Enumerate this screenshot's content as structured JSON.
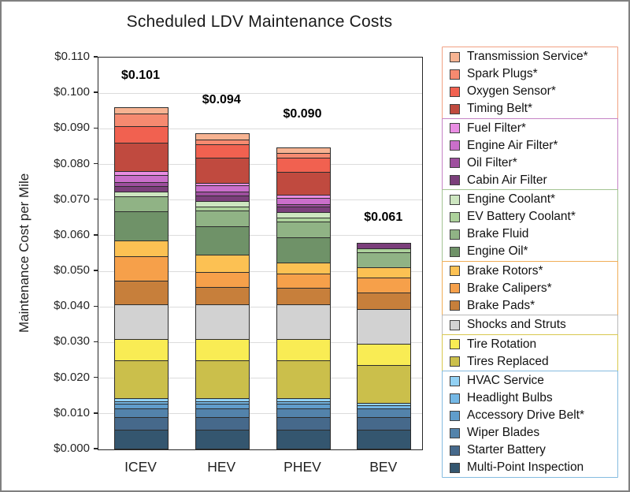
{
  "chart_data": {
    "type": "bar",
    "stacked": true,
    "title": "Scheduled LDV Maintenance Costs",
    "ylabel": "Maintenance Cost per Mile",
    "xlabel": "",
    "categories": [
      "ICEV",
      "HEV",
      "PHEV",
      "BEV"
    ],
    "totals_labels": [
      "$0.101",
      "$0.094",
      "$0.090",
      "$0.061"
    ],
    "totals_values": [
      0.101,
      0.094,
      0.09,
      0.061
    ],
    "ylim": [
      0,
      0.11
    ],
    "ytick_step": 0.01,
    "ytick_labels": [
      "$0.000",
      "$0.010",
      "$0.020",
      "$0.030",
      "$0.040",
      "$0.050",
      "$0.060",
      "$0.070",
      "$0.080",
      "$0.090",
      "$0.100",
      "$0.110"
    ],
    "grid": true,
    "legend_position": "right",
    "series_note": "series listed bottom-to-top of stack; values per category in $/mile",
    "series": [
      {
        "name": "Multi-Point Inspection",
        "color": "#34566F",
        "values": [
          0.0055,
          0.0055,
          0.0055,
          0.0055
        ]
      },
      {
        "name": "Starter Battery",
        "color": "#46698B",
        "values": [
          0.0037,
          0.0037,
          0.0037,
          0.0037
        ]
      },
      {
        "name": "Wiper Blades",
        "color": "#5383AB",
        "values": [
          0.0028,
          0.0028,
          0.0028,
          0.0028
        ]
      },
      {
        "name": "Accessory Drive Belt*",
        "color": "#609DCB",
        "values": [
          0.0015,
          0.0015,
          0.0015,
          0
        ]
      },
      {
        "name": "Headlight Bulbs",
        "color": "#74B8E6",
        "values": [
          0.001,
          0.001,
          0.001,
          0.001
        ]
      },
      {
        "name": "HVAC Service",
        "color": "#92D1F4",
        "values": [
          0.001,
          0.001,
          0.001,
          0.001
        ]
      },
      {
        "name": "Tires Replaced",
        "color": "#CBBF4B",
        "values": [
          0.0108,
          0.0108,
          0.0108,
          0.0108
        ]
      },
      {
        "name": "Tire Rotation",
        "color": "#F9EC54",
        "values": [
          0.0062,
          0.0062,
          0.0062,
          0.0062
        ]
      },
      {
        "name": "Shocks and Struts",
        "color": "#D2D2D2",
        "values": [
          0.01,
          0.01,
          0.01,
          0.01
        ]
      },
      {
        "name": "Brake Pads*",
        "color": "#C77F3B",
        "values": [
          0.0069,
          0.005,
          0.0048,
          0.0048
        ]
      },
      {
        "name": "Brake Calipers*",
        "color": "#F6A04A",
        "values": [
          0.007,
          0.0046,
          0.0044,
          0.0044
        ]
      },
      {
        "name": "Brake Rotors*",
        "color": "#FCC153",
        "values": [
          0.0048,
          0.005,
          0.0033,
          0.0031
        ]
      },
      {
        "name": "Engine Oil*",
        "color": "#6F9268",
        "values": [
          0.0083,
          0.0083,
          0.0072,
          0
        ]
      },
      {
        "name": "Brake Fluid",
        "color": "#90B385",
        "values": [
          0.0044,
          0.0046,
          0.0046,
          0.0046
        ]
      },
      {
        "name": "EV Battery Coolant*",
        "color": "#ACD19B",
        "values": [
          0,
          0.0013,
          0.0014,
          0.0013
        ]
      },
      {
        "name": "Engine Coolant*",
        "color": "#CDE6C0",
        "values": [
          0.0016,
          0.0018,
          0.0018,
          0
        ]
      },
      {
        "name": "Cabin Air Filter",
        "color": "#7B3F7B",
        "values": [
          0.0018,
          0.0018,
          0.0018,
          0.0018
        ]
      },
      {
        "name": "Oil Filter*",
        "color": "#9E4F9E",
        "values": [
          0.0013,
          0.0012,
          0.0009,
          0
        ]
      },
      {
        "name": "Engine Air Filter*",
        "color": "#CA6FCA",
        "values": [
          0.0022,
          0.0021,
          0.002,
          0
        ]
      },
      {
        "name": "Fuel Filter*",
        "color": "#E98DE3",
        "values": [
          0.0013,
          0.0008,
          0.001,
          0
        ]
      },
      {
        "name": "Timing Belt*",
        "color": "#C04A3F",
        "values": [
          0.0083,
          0.0074,
          0.0066,
          0
        ]
      },
      {
        "name": "Oxygen Sensor*",
        "color": "#F16150",
        "values": [
          0.0047,
          0.004,
          0.0043,
          0
        ]
      },
      {
        "name": "Spark Plugs*",
        "color": "#F68A70",
        "values": [
          0.0038,
          0.0015,
          0.0015,
          0
        ]
      },
      {
        "name": "Transmission Service*",
        "color": "#F7B392",
        "values": [
          0.0021,
          0.0021,
          0.0019,
          0
        ]
      }
    ]
  },
  "legend": {
    "groups": [
      {
        "border_color": "#F1A183",
        "items": [
          {
            "label": "Transmission Service*",
            "color": "#F7B392"
          },
          {
            "label": "Spark Plugs*",
            "color": "#F68A70"
          },
          {
            "label": "Oxygen Sensor*",
            "color": "#F16150"
          },
          {
            "label": "Timing Belt*",
            "color": "#C04A3F"
          }
        ]
      },
      {
        "border_color": "#C583C5",
        "items": [
          {
            "label": "Fuel Filter*",
            "color": "#E98DE3"
          },
          {
            "label": "Engine Air Filter*",
            "color": "#CA6FCA"
          },
          {
            "label": "Oil Filter*",
            "color": "#9E4F9E"
          },
          {
            "label": "Cabin Air Filter",
            "color": "#7B3F7B"
          }
        ]
      },
      {
        "border_color": "#A3C493",
        "items": [
          {
            "label": "Engine Coolant*",
            "color": "#CDE6C0"
          },
          {
            "label": "EV Battery Coolant*",
            "color": "#ACD19B"
          },
          {
            "label": "Brake Fluid",
            "color": "#90B385"
          },
          {
            "label": "Engine Oil*",
            "color": "#6F9268"
          }
        ]
      },
      {
        "border_color": "#F0AE58",
        "items": [
          {
            "label": "Brake Rotors*",
            "color": "#FCC153"
          },
          {
            "label": "Brake Calipers*",
            "color": "#F6A04A"
          },
          {
            "label": "Brake Pads*",
            "color": "#C77F3B"
          }
        ]
      },
      {
        "border_color": "#B9B9B9",
        "items": [
          {
            "label": "Shocks and Struts",
            "color": "#D2D2D2"
          }
        ]
      },
      {
        "border_color": "#D8C84E",
        "items": [
          {
            "label": "Tire Rotation",
            "color": "#F9EC54"
          },
          {
            "label": "Tires Replaced",
            "color": "#CBBF4B"
          }
        ]
      },
      {
        "border_color": "#85BCE0",
        "items": [
          {
            "label": "HVAC Service",
            "color": "#92D1F4"
          },
          {
            "label": "Headlight Bulbs",
            "color": "#74B8E6"
          },
          {
            "label": "Accessory Drive Belt*",
            "color": "#609DCB"
          },
          {
            "label": "Wiper Blades",
            "color": "#5383AB"
          },
          {
            "label": "Starter Battery",
            "color": "#46698B"
          },
          {
            "label": "Multi-Point Inspection",
            "color": "#34566F"
          }
        ]
      }
    ]
  },
  "colors": {
    "gridline": "#DCDCDC",
    "plot_border": "#262626",
    "figure_border": "#808080",
    "segment_outline": "#2D2D2D"
  }
}
